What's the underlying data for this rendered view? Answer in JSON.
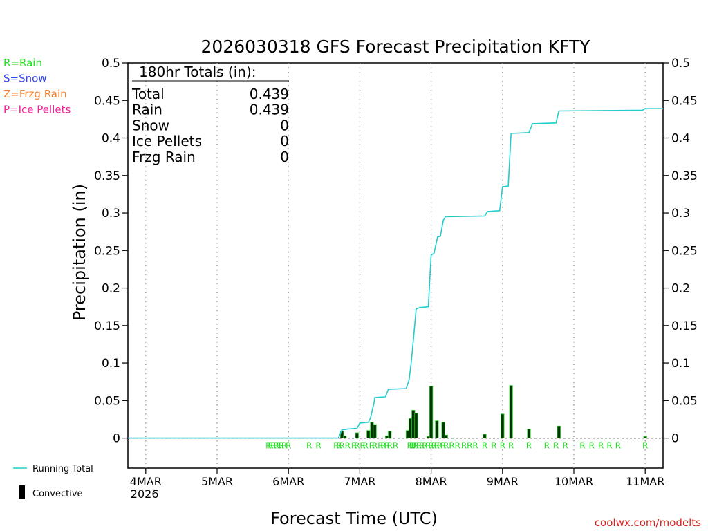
{
  "chart_data": {
    "type": "bar+line",
    "title": "2026030318 GFS Forecast Precipitation KFTY",
    "xlabel": "Forecast Time (UTC)",
    "ylabel": "Precipitation (in)",
    "ylim": [
      -0.04,
      0.5
    ],
    "xlim_days": [
      -0.25,
      7.25
    ],
    "y_ticks": [
      0,
      0.05,
      0.1,
      0.15,
      0.2,
      0.25,
      0.3,
      0.35,
      0.4,
      0.45,
      0.5
    ],
    "y_tick_labels": [
      "0",
      "0.05",
      "0.1",
      "0.15",
      "0.2",
      "0.25",
      "0.3",
      "0.35",
      "0.4",
      "0.45",
      "0.5"
    ],
    "x_ticks": [
      {
        "day": 0,
        "label": "4MAR",
        "sublabel": "2026"
      },
      {
        "day": 1,
        "label": "5MAR",
        "sublabel": ""
      },
      {
        "day": 2,
        "label": "6MAR",
        "sublabel": ""
      },
      {
        "day": 3,
        "label": "7MAR",
        "sublabel": ""
      },
      {
        "day": 4,
        "label": "8MAR",
        "sublabel": ""
      },
      {
        "day": 5,
        "label": "9MAR",
        "sublabel": ""
      },
      {
        "day": 6,
        "label": "10MAR",
        "sublabel": ""
      },
      {
        "day": 7,
        "label": "11MAR",
        "sublabel": ""
      }
    ],
    "legend_types": [
      {
        "label": "R=Rain",
        "color": "#22dd22"
      },
      {
        "label": "S=Snow",
        "color": "#3344ee"
      },
      {
        "label": "Z=Frzg Rain",
        "color": "#f08030"
      },
      {
        "label": "P=Ice Pellets",
        "color": "#ee2299"
      }
    ],
    "legend_series": {
      "running_total": "Running Total",
      "convective": "Convective"
    },
    "totals_box": {
      "header": "180hr Totals (in):",
      "rows": [
        {
          "label": "Total",
          "value": "0.439"
        },
        {
          "label": "Rain",
          "value": "0.439"
        },
        {
          "label": "Snow",
          "value": "0"
        },
        {
          "label": "Ice Pellets",
          "value": "0"
        },
        {
          "label": "Frzg Rain",
          "value": "0"
        }
      ]
    },
    "running_total": [
      [
        -0.25,
        0
      ],
      [
        2.7,
        0
      ],
      [
        2.75,
        0.011
      ],
      [
        2.83,
        0.012
      ],
      [
        2.96,
        0.013
      ],
      [
        3.0,
        0.02
      ],
      [
        3.12,
        0.021
      ],
      [
        3.15,
        0.027
      ],
      [
        3.2,
        0.047
      ],
      [
        3.21,
        0.054
      ],
      [
        3.36,
        0.055
      ],
      [
        3.4,
        0.065
      ],
      [
        3.65,
        0.066
      ],
      [
        3.69,
        0.077
      ],
      [
        3.72,
        0.1
      ],
      [
        3.76,
        0.14
      ],
      [
        3.79,
        0.172
      ],
      [
        3.84,
        0.174
      ],
      [
        3.96,
        0.175
      ],
      [
        4.0,
        0.244
      ],
      [
        4.04,
        0.246
      ],
      [
        4.09,
        0.268
      ],
      [
        4.13,
        0.269
      ],
      [
        4.17,
        0.29
      ],
      [
        4.2,
        0.295
      ],
      [
        4.75,
        0.296
      ],
      [
        4.79,
        0.302
      ],
      [
        4.96,
        0.303
      ],
      [
        5.0,
        0.335
      ],
      [
        5.08,
        0.336
      ],
      [
        5.12,
        0.406
      ],
      [
        5.37,
        0.407
      ],
      [
        5.42,
        0.419
      ],
      [
        5.75,
        0.42
      ],
      [
        5.79,
        0.436
      ],
      [
        6.96,
        0.437
      ],
      [
        7.0,
        0.439
      ],
      [
        7.25,
        0.439
      ]
    ],
    "precip_bars": [
      {
        "day": 2.75,
        "value": 0.009
      },
      {
        "day": 2.79,
        "value": 0.003
      },
      {
        "day": 2.96,
        "value": 0.007
      },
      {
        "day": 3.12,
        "value": 0.01
      },
      {
        "day": 3.17,
        "value": 0.021
      },
      {
        "day": 3.21,
        "value": 0.018
      },
      {
        "day": 3.38,
        "value": 0.003
      },
      {
        "day": 3.42,
        "value": 0.009
      },
      {
        "day": 3.67,
        "value": 0.01
      },
      {
        "day": 3.71,
        "value": 0.026
      },
      {
        "day": 3.75,
        "value": 0.037
      },
      {
        "day": 3.79,
        "value": 0.033
      },
      {
        "day": 3.96,
        "value": 0.002
      },
      {
        "day": 4.0,
        "value": 0.069
      },
      {
        "day": 4.08,
        "value": 0.023
      },
      {
        "day": 4.17,
        "value": 0.021
      },
      {
        "day": 4.21,
        "value": 0.004
      },
      {
        "day": 4.75,
        "value": 0.005
      },
      {
        "day": 5.0,
        "value": 0.032
      },
      {
        "day": 5.12,
        "value": 0.07
      },
      {
        "day": 5.37,
        "value": 0.012
      },
      {
        "day": 5.79,
        "value": 0.016
      },
      {
        "day": 7.0,
        "value": 0.002
      }
    ],
    "type_markers": [
      {
        "day": 1.72,
        "type": "R"
      },
      {
        "day": 1.75,
        "type": "R"
      },
      {
        "day": 1.79,
        "type": "R"
      },
      {
        "day": 1.83,
        "type": "R"
      },
      {
        "day": 1.86,
        "type": "R"
      },
      {
        "day": 1.9,
        "type": "R"
      },
      {
        "day": 1.94,
        "type": "R"
      },
      {
        "day": 2.0,
        "type": "R"
      },
      {
        "day": 2.29,
        "type": "R"
      },
      {
        "day": 2.42,
        "type": "R"
      },
      {
        "day": 2.67,
        "type": "R"
      },
      {
        "day": 2.71,
        "type": "R"
      },
      {
        "day": 2.75,
        "type": "R"
      },
      {
        "day": 2.83,
        "type": "R"
      },
      {
        "day": 2.92,
        "type": "R"
      },
      {
        "day": 2.96,
        "type": "R"
      },
      {
        "day": 3.04,
        "type": "R"
      },
      {
        "day": 3.08,
        "type": "R"
      },
      {
        "day": 3.17,
        "type": "R"
      },
      {
        "day": 3.21,
        "type": "R"
      },
      {
        "day": 3.29,
        "type": "R"
      },
      {
        "day": 3.33,
        "type": "R"
      },
      {
        "day": 3.38,
        "type": "R"
      },
      {
        "day": 3.42,
        "type": "R"
      },
      {
        "day": 3.5,
        "type": "R"
      },
      {
        "day": 3.7,
        "type": "R"
      },
      {
        "day": 3.73,
        "type": "R"
      },
      {
        "day": 3.76,
        "type": "R"
      },
      {
        "day": 3.79,
        "type": "R"
      },
      {
        "day": 3.83,
        "type": "R"
      },
      {
        "day": 3.87,
        "type": "R"
      },
      {
        "day": 3.91,
        "type": "R"
      },
      {
        "day": 3.96,
        "type": "R"
      },
      {
        "day": 4.0,
        "type": "R"
      },
      {
        "day": 4.04,
        "type": "R"
      },
      {
        "day": 4.08,
        "type": "R"
      },
      {
        "day": 4.12,
        "type": "R"
      },
      {
        "day": 4.17,
        "type": "R"
      },
      {
        "day": 4.21,
        "type": "R"
      },
      {
        "day": 4.29,
        "type": "R"
      },
      {
        "day": 4.37,
        "type": "R"
      },
      {
        "day": 4.46,
        "type": "R"
      },
      {
        "day": 4.54,
        "type": "R"
      },
      {
        "day": 4.62,
        "type": "R"
      },
      {
        "day": 4.75,
        "type": "R"
      },
      {
        "day": 4.88,
        "type": "R"
      },
      {
        "day": 5.0,
        "type": "R"
      },
      {
        "day": 5.12,
        "type": "R"
      },
      {
        "day": 5.37,
        "type": "R"
      },
      {
        "day": 5.62,
        "type": "R"
      },
      {
        "day": 5.75,
        "type": "R"
      },
      {
        "day": 5.88,
        "type": "R"
      },
      {
        "day": 6.12,
        "type": "R"
      },
      {
        "day": 6.25,
        "type": "R"
      },
      {
        "day": 6.38,
        "type": "R"
      },
      {
        "day": 6.5,
        "type": "R"
      },
      {
        "day": 6.62,
        "type": "R"
      },
      {
        "day": 7.0,
        "type": "R"
      }
    ],
    "colors": {
      "running_total": "#22cccc",
      "bar_fill": "#003300",
      "bar_edge": "#22cc22",
      "rain_marker": "#22dd22",
      "zero_line": "#000000",
      "footer": "#dd2222"
    },
    "footer": "coolwx.com/modelts"
  }
}
